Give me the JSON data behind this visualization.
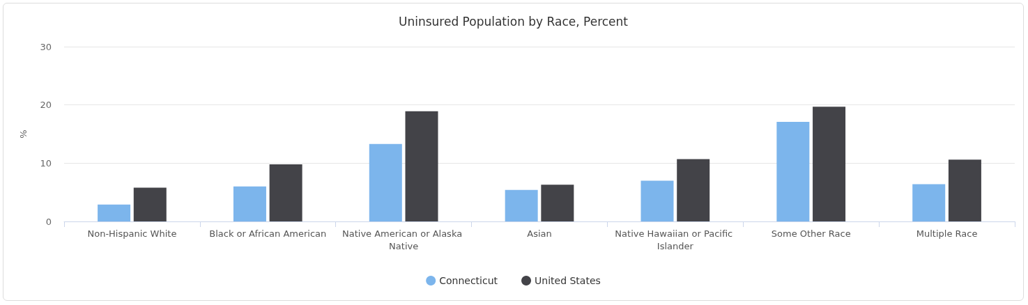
{
  "chart_data": {
    "type": "bar",
    "title": "Uninsured Population by Race, Percent",
    "ylabel": "%",
    "categories": [
      "Non-Hispanic White",
      "Black or African American",
      "Native American or Alaska Native",
      "Asian",
      "Native Hawaiian or Pacific Islander",
      "Some Other Race",
      "Multiple Race"
    ],
    "series": [
      {
        "name": "Connecticut",
        "color": "#7cb5ec",
        "values": [
          2.9,
          6.0,
          13.3,
          5.4,
          7.0,
          17.1,
          6.4
        ]
      },
      {
        "name": "United States",
        "color": "#434348",
        "values": [
          5.8,
          9.8,
          18.9,
          6.3,
          10.7,
          19.7,
          10.6
        ]
      }
    ],
    "ylim": [
      0,
      30
    ],
    "yticks": [
      0,
      10,
      20,
      30
    ],
    "grid": "y",
    "legend": "bottom"
  }
}
